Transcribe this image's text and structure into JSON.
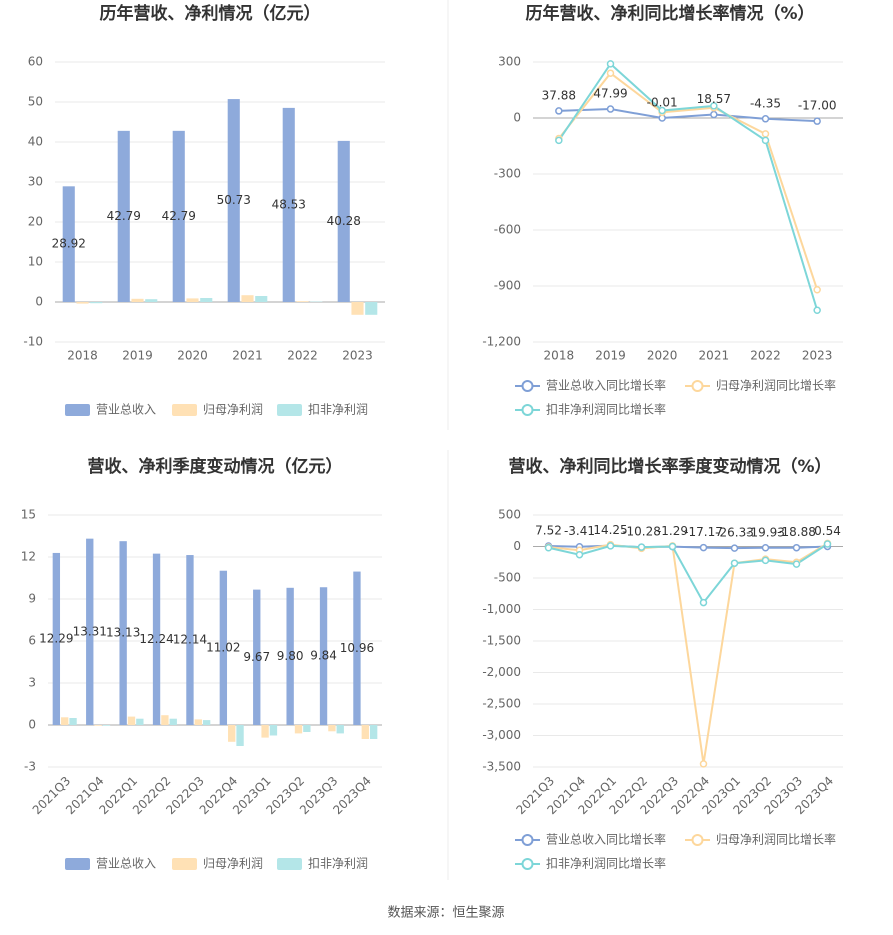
{
  "chart_data": [
    {
      "type": "bar",
      "title": "历年营收、净利情况（亿元）",
      "categories": [
        "2018",
        "2019",
        "2020",
        "2021",
        "2022",
        "2023"
      ],
      "series": [
        {
          "name": "营业总收入",
          "color": "#8eaadb",
          "values": [
            28.92,
            42.79,
            42.79,
            50.73,
            48.53,
            40.28
          ],
          "data_labels": true
        },
        {
          "name": "归母净利润",
          "color": "#ffe1b5",
          "values": [
            -0.4,
            0.8,
            0.9,
            1.7,
            0.2,
            -3.2
          ]
        },
        {
          "name": "扣非净利润",
          "color": "#b4e6e8",
          "values": [
            -0.3,
            0.7,
            1.0,
            1.5,
            0.1,
            -3.2
          ]
        }
      ],
      "ylim": [
        -10,
        60
      ],
      "yticks": [
        -10,
        0,
        10,
        20,
        30,
        40,
        50,
        60
      ],
      "grid": true,
      "legend": "bottom"
    },
    {
      "type": "line",
      "title": "历年营收、净利同比增长率情况（%）",
      "categories": [
        "2018",
        "2019",
        "2020",
        "2021",
        "2022",
        "2023"
      ],
      "series": [
        {
          "name": "营业总收入同比增长率",
          "color": "#7f9fd6",
          "values": [
            37.88,
            47.99,
            -0.01,
            18.57,
            -4.35,
            -17.0
          ],
          "value_labels": [
            "37.88",
            "47.99",
            "-0.01",
            "18.57",
            "-4.35",
            "-17.00"
          ],
          "data_labels": true
        },
        {
          "name": "归母净利润同比增长率",
          "color": "#fdd79c",
          "values": [
            -110,
            240,
            30,
            55,
            -85,
            -920
          ]
        },
        {
          "name": "扣非净利润同比增长率",
          "color": "#7dd6d8",
          "values": [
            -120,
            290,
            40,
            65,
            -120,
            -1030
          ]
        }
      ],
      "ylim": [
        -1200,
        300
      ],
      "yticks": [
        {
          "value": -1200,
          "label": "-1,200"
        },
        -900,
        -600,
        -300,
        0,
        300
      ],
      "grid": true,
      "legend": "bottom"
    },
    {
      "type": "bar",
      "title": "营收、净利季度变动情况（亿元）",
      "categories": [
        "2021Q3",
        "2021Q4",
        "2022Q1",
        "2022Q2",
        "2022Q3",
        "2022Q4",
        "2023Q1",
        "2023Q2",
        "2023Q3",
        "2023Q4"
      ],
      "series": [
        {
          "name": "营业总收入",
          "color": "#8eaadb",
          "values": [
            12.29,
            13.31,
            13.13,
            12.24,
            12.14,
            11.02,
            9.67,
            9.8,
            9.84,
            10.96
          ],
          "value_labels": [
            "12.29",
            "13.31",
            "13.13",
            "12.24",
            "12.14",
            "11.02",
            "9.67",
            "9.80",
            "9.84",
            "10.96"
          ],
          "data_labels": true
        },
        {
          "name": "归母净利润",
          "color": "#ffe1b5",
          "values": [
            0.55,
            -0.05,
            0.6,
            0.7,
            0.4,
            -1.2,
            -0.9,
            -0.6,
            -0.45,
            -1.0
          ]
        },
        {
          "name": "扣非净利润",
          "color": "#b4e6e8",
          "values": [
            0.5,
            -0.05,
            0.45,
            0.45,
            0.35,
            -1.5,
            -0.75,
            -0.5,
            -0.6,
            -1.0
          ]
        }
      ],
      "ylim": [
        -3,
        15
      ],
      "yticks": [
        -3,
        0,
        3,
        6,
        9,
        12,
        15
      ],
      "grid": true,
      "legend": "bottom"
    },
    {
      "type": "line",
      "title": "营收、净利同比增长率季度变动情况（%）",
      "categories": [
        "2021Q3",
        "2021Q4",
        "2022Q1",
        "2022Q2",
        "2022Q3",
        "2022Q4",
        "2023Q1",
        "2023Q2",
        "2023Q3",
        "2023Q4"
      ],
      "series": [
        {
          "name": "营业总收入同比增长率",
          "color": "#7f9fd6",
          "values": [
            7.52,
            -3.41,
            14.25,
            -10.28,
            -1.29,
            -17.17,
            -26.33,
            -19.93,
            -18.88,
            0.54
          ],
          "data_labels": true
        },
        {
          "name": "归母净利润同比增长率",
          "color": "#fdd79c",
          "values": [
            -10,
            -60,
            30,
            -30,
            10,
            -3450,
            -265,
            -200,
            -250,
            50
          ]
        },
        {
          "name": "扣非净利润同比增长率",
          "color": "#7dd6d8",
          "values": [
            -20,
            -130,
            10,
            -10,
            0,
            -890,
            -265,
            -220,
            -280,
            40
          ]
        }
      ],
      "ylim": [
        -3500,
        500
      ],
      "yticks": [
        {
          "value": -3500,
          "label": "-3,500"
        },
        {
          "value": -3000,
          "label": "-3,000"
        },
        {
          "value": -2500,
          "label": "-2,500"
        },
        {
          "value": -2000,
          "label": "-2,000"
        },
        {
          "value": -1500,
          "label": "-1,500"
        },
        {
          "value": -1000,
          "label": "-1,000"
        },
        -500,
        0,
        500
      ],
      "grid": true,
      "legend": "bottom"
    }
  ],
  "footer": "数据来源：恒生聚源"
}
